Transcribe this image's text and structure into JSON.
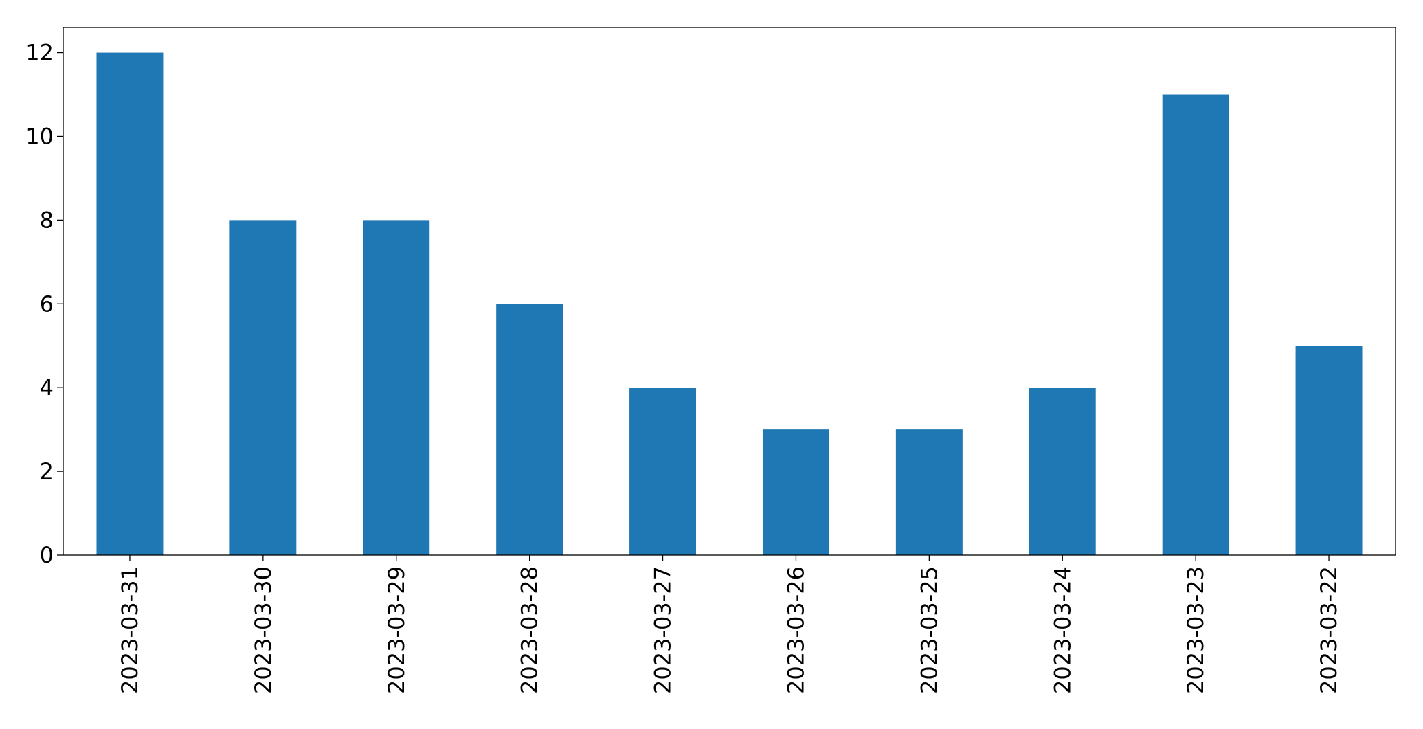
{
  "chart_data": {
    "type": "bar",
    "categories": [
      "2023-03-31",
      "2023-03-30",
      "2023-03-29",
      "2023-03-28",
      "2023-03-27",
      "2023-03-26",
      "2023-03-25",
      "2023-03-24",
      "2023-03-23",
      "2023-03-22"
    ],
    "values": [
      12,
      8,
      8,
      6,
      4,
      3,
      3,
      4,
      11,
      5
    ],
    "color": "#1f77b4",
    "ylim": [
      0,
      12.6
    ],
    "yticks": [
      0,
      2,
      4,
      6,
      8,
      10,
      12
    ],
    "grid": false
  }
}
